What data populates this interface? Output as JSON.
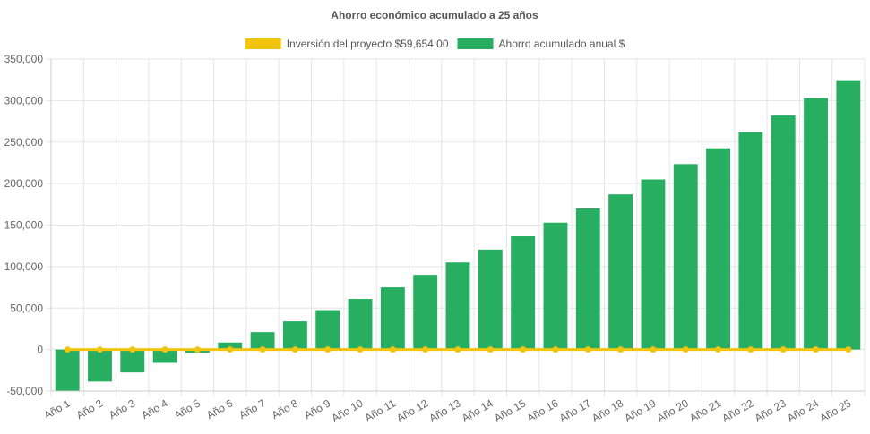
{
  "chart_data": {
    "type": "bar",
    "title": "Ahorro económico acumulado a 25 años",
    "categories": [
      "Año 1",
      "Año 2",
      "Año 3",
      "Año 4",
      "Año 5",
      "Año 6",
      "Año 7",
      "Año 8",
      "Año 9",
      "Año 10",
      "Año 11",
      "Año 12",
      "Año 13",
      "Año 14",
      "Año 15",
      "Año 16",
      "Año 17",
      "Año 18",
      "Año 19",
      "Año 20",
      "Año 21",
      "Año 22",
      "Año 23",
      "Año 24",
      "Año 25"
    ],
    "series": [
      {
        "name": "Inversión del proyecto $59,654.00",
        "type": "line",
        "color": "#f1c40f",
        "values": [
          0,
          0,
          0,
          0,
          0,
          0,
          0,
          0,
          0,
          0,
          0,
          0,
          0,
          0,
          0,
          0,
          0,
          0,
          0,
          0,
          0,
          0,
          0,
          0,
          0
        ]
      },
      {
        "name": "Ahorro acumulado anual $",
        "type": "bar",
        "color": "#27ae60",
        "values": [
          -49500,
          -38500,
          -27500,
          -16000,
          -4000,
          8500,
          21000,
          34000,
          47500,
          61000,
          75000,
          90000,
          105000,
          120500,
          136500,
          153000,
          170000,
          187000,
          205000,
          223500,
          242500,
          262000,
          282000,
          303000,
          324500
        ]
      }
    ],
    "yticks": [
      -50000,
      0,
      50000,
      100000,
      150000,
      200000,
      250000,
      300000,
      350000
    ],
    "yticklabels": [
      "-50,000",
      "0",
      "50,000",
      "100,000",
      "150,000",
      "200,000",
      "250,000",
      "300,000",
      "350,000"
    ],
    "ylim": [
      -50000,
      350000
    ],
    "legend_position": "top",
    "grid": true
  }
}
